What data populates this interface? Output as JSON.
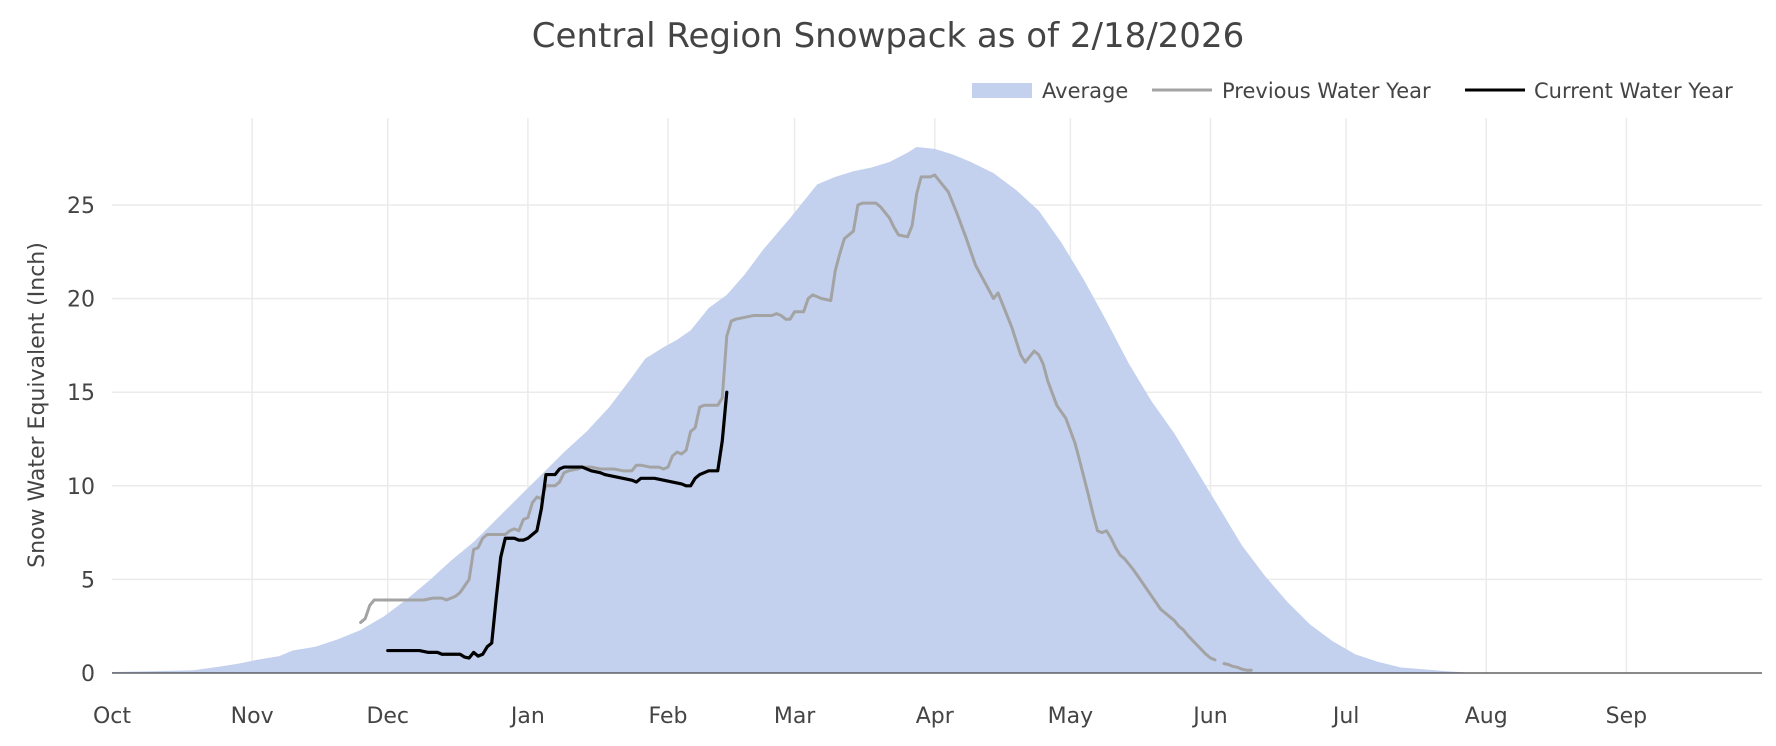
{
  "chart_data": {
    "type": "area",
    "title": "Central Region Snowpack as of 2/18/2026",
    "ylabel": "Snow Water Equivalent (Inch)",
    "xlabel": "",
    "x_unit": "days since Oct 1 (water year)",
    "xlim": [
      0,
      365
    ],
    "ylim": [
      0,
      29
    ],
    "yticks": [
      0,
      5,
      10,
      15,
      20,
      25
    ],
    "month_ticks": [
      {
        "label": "Oct",
        "day": 0
      },
      {
        "label": "Nov",
        "day": 31
      },
      {
        "label": "Dec",
        "day": 61
      },
      {
        "label": "Jan",
        "day": 92
      },
      {
        "label": "Feb",
        "day": 123
      },
      {
        "label": "Mar",
        "day": 151
      },
      {
        "label": "Apr",
        "day": 182
      },
      {
        "label": "May",
        "day": 212
      },
      {
        "label": "Jun",
        "day": 243
      },
      {
        "label": "Jul",
        "day": 273
      },
      {
        "label": "Aug",
        "day": 304
      },
      {
        "label": "Sep",
        "day": 335
      }
    ],
    "grid": true,
    "legend_position": "top-right",
    "series": [
      {
        "name": "Average",
        "kind": "area",
        "color": "#c3d1ee",
        "points": [
          [
            0,
            0.05
          ],
          [
            10,
            0.1
          ],
          [
            18,
            0.15
          ],
          [
            24,
            0.35
          ],
          [
            28,
            0.5
          ],
          [
            32,
            0.7
          ],
          [
            37,
            0.9
          ],
          [
            40,
            1.2
          ],
          [
            45,
            1.4
          ],
          [
            50,
            1.8
          ],
          [
            55,
            2.3
          ],
          [
            60,
            3.0
          ],
          [
            65,
            3.9
          ],
          [
            70,
            4.9
          ],
          [
            75,
            6.0
          ],
          [
            80,
            7.0
          ],
          [
            85,
            8.2
          ],
          [
            90,
            9.4
          ],
          [
            95,
            10.6
          ],
          [
            100,
            11.8
          ],
          [
            105,
            12.9
          ],
          [
            110,
            14.2
          ],
          [
            115,
            15.8
          ],
          [
            118,
            16.8
          ],
          [
            122,
            17.4
          ],
          [
            125,
            17.8
          ],
          [
            128,
            18.3
          ],
          [
            132,
            19.5
          ],
          [
            136,
            20.2
          ],
          [
            140,
            21.3
          ],
          [
            144,
            22.6
          ],
          [
            150,
            24.3
          ],
          [
            153,
            25.2
          ],
          [
            156,
            26.1
          ],
          [
            160,
            26.5
          ],
          [
            164,
            26.8
          ],
          [
            168,
            27.0
          ],
          [
            172,
            27.3
          ],
          [
            176,
            27.8
          ],
          [
            178,
            28.1
          ],
          [
            182,
            28.0
          ],
          [
            186,
            27.7
          ],
          [
            190,
            27.3
          ],
          [
            195,
            26.7
          ],
          [
            200,
            25.8
          ],
          [
            205,
            24.7
          ],
          [
            210,
            23.0
          ],
          [
            215,
            21.0
          ],
          [
            220,
            18.8
          ],
          [
            225,
            16.5
          ],
          [
            230,
            14.5
          ],
          [
            235,
            12.8
          ],
          [
            240,
            10.8
          ],
          [
            245,
            8.8
          ],
          [
            250,
            6.8
          ],
          [
            255,
            5.2
          ],
          [
            260,
            3.8
          ],
          [
            265,
            2.6
          ],
          [
            270,
            1.7
          ],
          [
            275,
            1.0
          ],
          [
            280,
            0.6
          ],
          [
            285,
            0.3
          ],
          [
            290,
            0.2
          ],
          [
            295,
            0.1
          ],
          [
            300,
            0.02
          ],
          [
            305,
            0.0
          ],
          [
            365,
            0.0
          ]
        ]
      },
      {
        "name": "Previous Water Year",
        "kind": "line",
        "color": "#a3a3a3",
        "segments": [
          [
            [
              55,
              2.7
            ],
            [
              56,
              2.9
            ],
            [
              57,
              3.6
            ],
            [
              58,
              3.9
            ],
            [
              64,
              3.9
            ],
            [
              69,
              3.9
            ],
            [
              71,
              4.0
            ],
            [
              73,
              4.0
            ],
            [
              74,
              3.9
            ],
            [
              76,
              4.1
            ],
            [
              77,
              4.3
            ],
            [
              79,
              5.0
            ],
            [
              80,
              6.6
            ],
            [
              81,
              6.7
            ],
            [
              82,
              7.2
            ],
            [
              83,
              7.4
            ],
            [
              85,
              7.4
            ],
            [
              87,
              7.4
            ],
            [
              88,
              7.6
            ],
            [
              89,
              7.7
            ],
            [
              90,
              7.6
            ],
            [
              91,
              8.2
            ],
            [
              92,
              8.3
            ],
            [
              93,
              9.1
            ],
            [
              94,
              9.4
            ],
            [
              95,
              9.3
            ],
            [
              96,
              10.0
            ],
            [
              98,
              10.0
            ],
            [
              99,
              10.2
            ],
            [
              100,
              10.7
            ],
            [
              101,
              10.8
            ],
            [
              103,
              10.9
            ],
            [
              104,
              11.0
            ],
            [
              106,
              11.0
            ],
            [
              108,
              10.9
            ],
            [
              110,
              10.9
            ],
            [
              111,
              10.9
            ],
            [
              113,
              10.8
            ],
            [
              115,
              10.8
            ],
            [
              116,
              11.1
            ],
            [
              117,
              11.1
            ],
            [
              119,
              11.0
            ],
            [
              121,
              11.0
            ],
            [
              122,
              10.9
            ],
            [
              123,
              11.0
            ],
            [
              124,
              11.6
            ],
            [
              125,
              11.8
            ],
            [
              126,
              11.7
            ],
            [
              127,
              11.9
            ],
            [
              128,
              12.9
            ],
            [
              129,
              13.1
            ],
            [
              130,
              14.2
            ],
            [
              131,
              14.3
            ],
            [
              134,
              14.3
            ],
            [
              135,
              14.7
            ],
            [
              136,
              18.0
            ],
            [
              137,
              18.8
            ],
            [
              138,
              18.9
            ],
            [
              140,
              19.0
            ],
            [
              142,
              19.1
            ],
            [
              146,
              19.1
            ],
            [
              147,
              19.2
            ],
            [
              148,
              19.1
            ],
            [
              149,
              18.9
            ],
            [
              150,
              18.9
            ],
            [
              151,
              19.3
            ],
            [
              153,
              19.3
            ],
            [
              154,
              20.0
            ],
            [
              155,
              20.2
            ],
            [
              157,
              20.0
            ],
            [
              159,
              19.9
            ],
            [
              160,
              21.5
            ],
            [
              161,
              22.4
            ],
            [
              162,
              23.2
            ],
            [
              163,
              23.4
            ],
            [
              164,
              23.6
            ],
            [
              165,
              25.0
            ],
            [
              166,
              25.1
            ],
            [
              169,
              25.1
            ],
            [
              170,
              24.9
            ],
            [
              172,
              24.3
            ],
            [
              173,
              23.8
            ],
            [
              174,
              23.4
            ],
            [
              176,
              23.3
            ],
            [
              177,
              23.9
            ],
            [
              178,
              25.6
            ],
            [
              179,
              26.5
            ],
            [
              181,
              26.5
            ],
            [
              182,
              26.6
            ],
            [
              183,
              26.3
            ],
            [
              185,
              25.7
            ],
            [
              187,
              24.5
            ],
            [
              189,
              23.2
            ],
            [
              191,
              21.8
            ],
            [
              193,
              20.9
            ],
            [
              195,
              20.0
            ],
            [
              196,
              20.3
            ],
            [
              197,
              19.7
            ],
            [
              199,
              18.5
            ],
            [
              201,
              17.0
            ],
            [
              202,
              16.6
            ],
            [
              203,
              16.9
            ],
            [
              204,
              17.2
            ],
            [
              205,
              17.0
            ],
            [
              206,
              16.5
            ],
            [
              207,
              15.6
            ],
            [
              209,
              14.3
            ],
            [
              211,
              13.6
            ],
            [
              213,
              12.3
            ],
            [
              214,
              11.4
            ],
            [
              216,
              9.5
            ],
            [
              217,
              8.5
            ],
            [
              218,
              7.6
            ],
            [
              219,
              7.5
            ],
            [
              220,
              7.6
            ],
            [
              221,
              7.2
            ],
            [
              222,
              6.7
            ],
            [
              223,
              6.3
            ],
            [
              224,
              6.1
            ],
            [
              226,
              5.5
            ],
            [
              228,
              4.8
            ],
            [
              230,
              4.1
            ],
            [
              232,
              3.4
            ],
            [
              234,
              3.0
            ],
            [
              235,
              2.8
            ],
            [
              236,
              2.5
            ],
            [
              237,
              2.3
            ],
            [
              238,
              2.0
            ],
            [
              240,
              1.5
            ],
            [
              242,
              1.0
            ],
            [
              243,
              0.8
            ],
            [
              244,
              0.7
            ]
          ],
          [
            [
              246,
              0.5
            ],
            [
              247,
              0.45
            ],
            [
              248,
              0.35
            ],
            [
              249,
              0.3
            ],
            [
              250,
              0.2
            ],
            [
              251,
              0.15
            ],
            [
              252,
              0.15
            ]
          ]
        ]
      },
      {
        "name": "Current Water Year",
        "kind": "line",
        "color": "#000000",
        "segments": [
          [
            [
              61,
              1.2
            ],
            [
              68,
              1.2
            ],
            [
              70,
              1.1
            ],
            [
              72,
              1.1
            ],
            [
              73,
              1.0
            ],
            [
              77,
              1.0
            ],
            [
              78,
              0.85
            ],
            [
              79,
              0.8
            ],
            [
              80,
              1.1
            ],
            [
              81,
              0.9
            ],
            [
              82,
              1.0
            ],
            [
              83,
              1.4
            ],
            [
              84,
              1.6
            ],
            [
              85,
              4.0
            ],
            [
              86,
              6.2
            ],
            [
              87,
              7.2
            ],
            [
              89,
              7.2
            ],
            [
              90,
              7.1
            ],
            [
              91,
              7.1
            ],
            [
              92,
              7.2
            ],
            [
              93,
              7.4
            ],
            [
              94,
              7.6
            ],
            [
              95,
              8.8
            ],
            [
              96,
              10.6
            ],
            [
              98,
              10.6
            ],
            [
              99,
              10.9
            ],
            [
              100,
              11.0
            ],
            [
              104,
              11.0
            ],
            [
              105,
              10.9
            ],
            [
              106,
              10.8
            ],
            [
              108,
              10.7
            ],
            [
              109,
              10.6
            ],
            [
              111,
              10.5
            ],
            [
              113,
              10.4
            ],
            [
              115,
              10.3
            ],
            [
              116,
              10.2
            ],
            [
              117,
              10.4
            ],
            [
              120,
              10.4
            ],
            [
              122,
              10.3
            ],
            [
              124,
              10.2
            ],
            [
              126,
              10.1
            ],
            [
              127,
              10.0
            ],
            [
              128,
              10.0
            ],
            [
              129,
              10.4
            ],
            [
              130,
              10.6
            ],
            [
              131,
              10.7
            ],
            [
              132,
              10.8
            ],
            [
              134,
              10.8
            ],
            [
              135,
              12.4
            ],
            [
              136,
              15.0
            ]
          ]
        ]
      }
    ]
  }
}
